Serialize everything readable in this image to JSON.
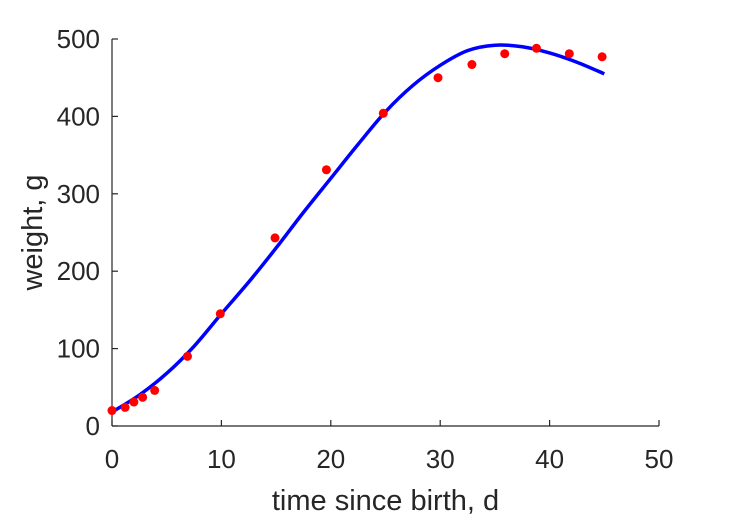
{
  "chart_data": {
    "type": "scatter",
    "xlabel": "time since birth, d",
    "ylabel": "weight, g",
    "xlim": [
      0,
      50
    ],
    "ylim": [
      0,
      500
    ],
    "xticks": [
      0,
      10,
      20,
      30,
      40,
      50
    ],
    "yticks": [
      0,
      100,
      200,
      300,
      400,
      500
    ],
    "xtick_labels": [
      "0",
      "10",
      "20",
      "30",
      "40",
      "50"
    ],
    "ytick_labels": [
      "0",
      "100",
      "200",
      "300",
      "400",
      "500"
    ],
    "grid": false,
    "legend": "none",
    "series": [
      {
        "kind": "points",
        "color": "#ff0000",
        "x": [
          0,
          1.2,
          2,
          2.8,
          3.9,
          6.9,
          9.9,
          14.9,
          19.6,
          24.8,
          29.8,
          32.9,
          35.9,
          38.8,
          41.8,
          44.8
        ],
        "y": [
          20,
          24,
          31,
          37,
          46,
          90,
          145,
          243,
          331,
          404,
          450,
          467,
          481,
          488,
          481,
          477
        ]
      },
      {
        "kind": "line",
        "color": "#0000ff",
        "x": [
          0,
          2.5,
          5,
          7.5,
          10,
          12.5,
          15,
          17.5,
          20,
          22.5,
          25,
          27.5,
          30,
          32.5,
          35,
          37.5,
          40,
          42.5,
          45
        ],
        "y": [
          18,
          40,
          68,
          103,
          145,
          186,
          230,
          276,
          320,
          364,
          406,
          440,
          466,
          485,
          492,
          490,
          482,
          470,
          455
        ]
      }
    ]
  }
}
